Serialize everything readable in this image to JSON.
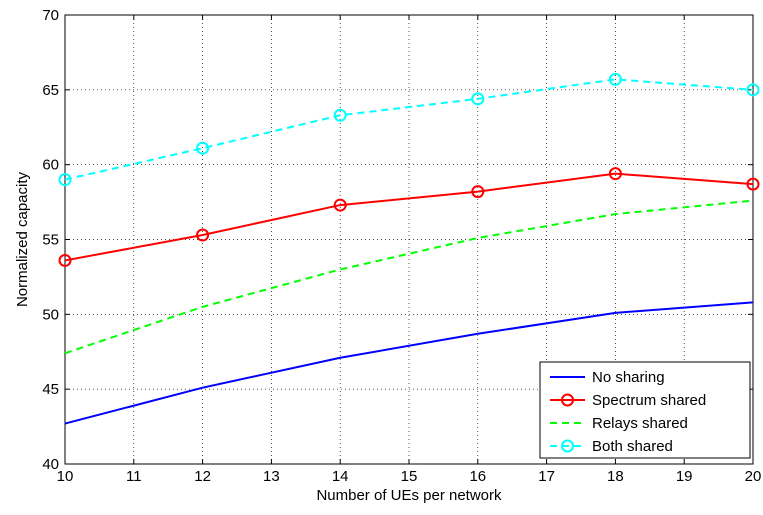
{
  "chart_data": {
    "type": "line",
    "title": "",
    "xlabel": "Number of UEs per network",
    "ylabel": "Normalized capacity",
    "xlim": [
      10,
      20
    ],
    "ylim": [
      40,
      70
    ],
    "xticks": [
      10,
      11,
      12,
      13,
      14,
      15,
      16,
      17,
      18,
      19,
      20
    ],
    "yticks": [
      40,
      45,
      50,
      55,
      60,
      65,
      70
    ],
    "grid": true,
    "legend_position": "bottom-right",
    "x": [
      10,
      12,
      14,
      16,
      18,
      20
    ],
    "series": [
      {
        "name": "No sharing",
        "values": [
          42.7,
          45.1,
          47.1,
          48.7,
          50.1,
          50.8
        ],
        "color": "#0000ff",
        "dash": "solid",
        "marker": "none"
      },
      {
        "name": "Spectrum shared",
        "values": [
          53.6,
          55.3,
          57.3,
          58.2,
          59.4,
          58.7
        ],
        "color": "#ff0000",
        "dash": "solid",
        "marker": "circle"
      },
      {
        "name": "Relays shared",
        "values": [
          47.4,
          50.5,
          53.0,
          55.1,
          56.7,
          57.6
        ],
        "color": "#00ff00",
        "dash": "dashed",
        "marker": "none"
      },
      {
        "name": "Both shared",
        "values": [
          59.0,
          61.1,
          63.3,
          64.4,
          65.7,
          65.0
        ],
        "color": "#00ffff",
        "dash": "dashed",
        "marker": "circle"
      }
    ]
  }
}
